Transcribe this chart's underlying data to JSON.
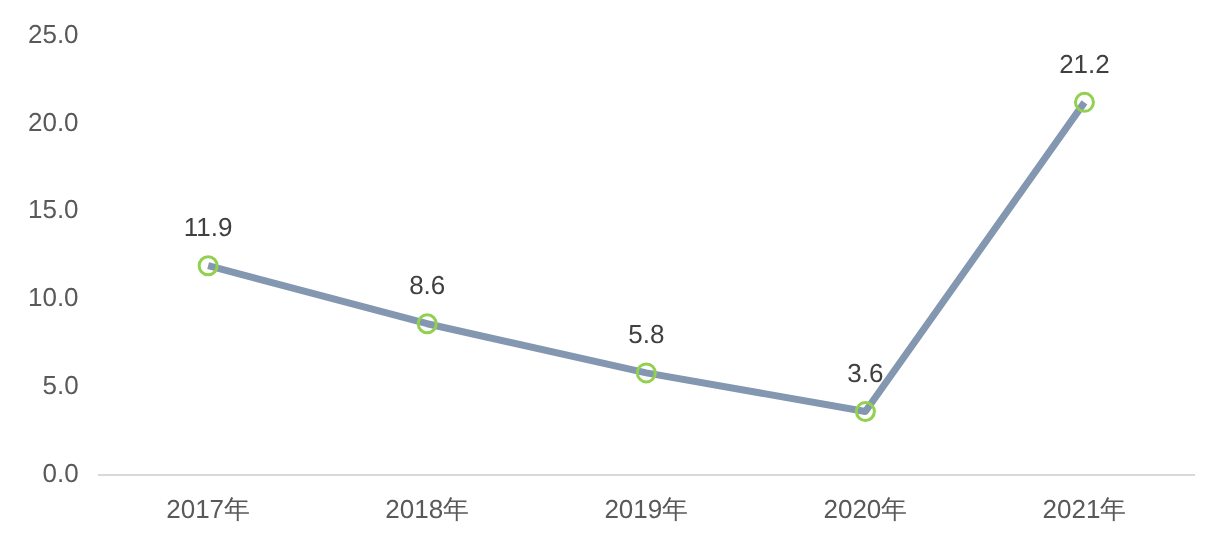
{
  "chart_data": {
    "type": "line",
    "categories": [
      "2017年",
      "2018年",
      "2019年",
      "2020年",
      "2021年"
    ],
    "series": [
      {
        "color": "#8497b0",
        "colors": [
          "#92d050",
          "#92d050",
          "#92d050",
          "#92d050",
          "#92d050"
        ],
        "values": [
          11.9,
          8.6,
          5.8,
          3.6,
          21.2
        ]
      }
    ],
    "ylim": [
      0,
      25
    ],
    "yticks": [
      {
        "value": 0,
        "label": "0.0"
      },
      {
        "value": 5,
        "label": "5.0"
      },
      {
        "value": 10,
        "label": "10.0"
      },
      {
        "value": 15,
        "label": "15.0"
      },
      {
        "value": 20,
        "label": "20.0"
      },
      {
        "value": 25,
        "label": "25.0"
      }
    ],
    "data_labels": true,
    "marker": "circle",
    "grid": false,
    "legend": false,
    "line_style": "solid"
  }
}
